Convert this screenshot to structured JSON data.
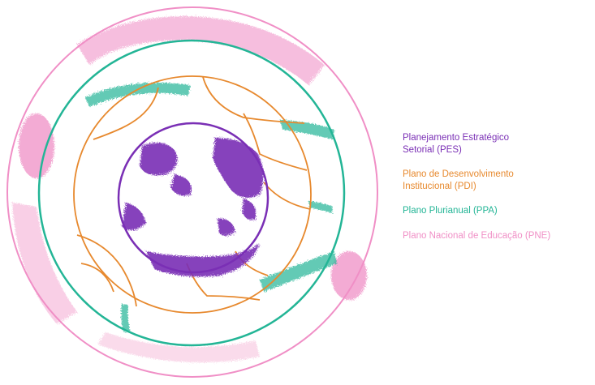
{
  "legend": {
    "pes": "Planejamento Estratégico\nSetorial (PES)",
    "pdi": "Plano de Desenvolvimento\nInstitucional (PDI)",
    "ppa": "Plano Plurianual (PPA)",
    "pne": "Plano Nacional de Educação (PNE)"
  },
  "colors": {
    "pes": "#7a2fb5",
    "pdi": "#e7892e",
    "ppa": "#23b596",
    "pne": "#f08fc6"
  }
}
